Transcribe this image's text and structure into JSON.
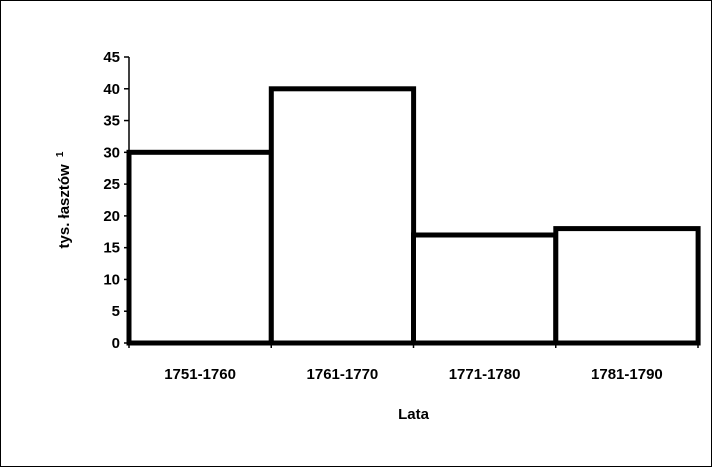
{
  "chart_data": {
    "type": "bar",
    "categories": [
      "1751-1760",
      "1761-1770",
      "1771-1780",
      "1781-1790"
    ],
    "values": [
      30,
      40,
      17,
      18
    ],
    "title": "",
    "xlabel": "Lata",
    "ylabel": "tys. łasztów",
    "ylabel_superscript": "1",
    "ylim": [
      0,
      45
    ],
    "yticks": [
      0,
      5,
      10,
      15,
      20,
      25,
      30,
      35,
      40,
      45
    ],
    "grid": false,
    "legend": "none",
    "bar_fill": "#ffffff",
    "bar_outline": "#000000"
  }
}
